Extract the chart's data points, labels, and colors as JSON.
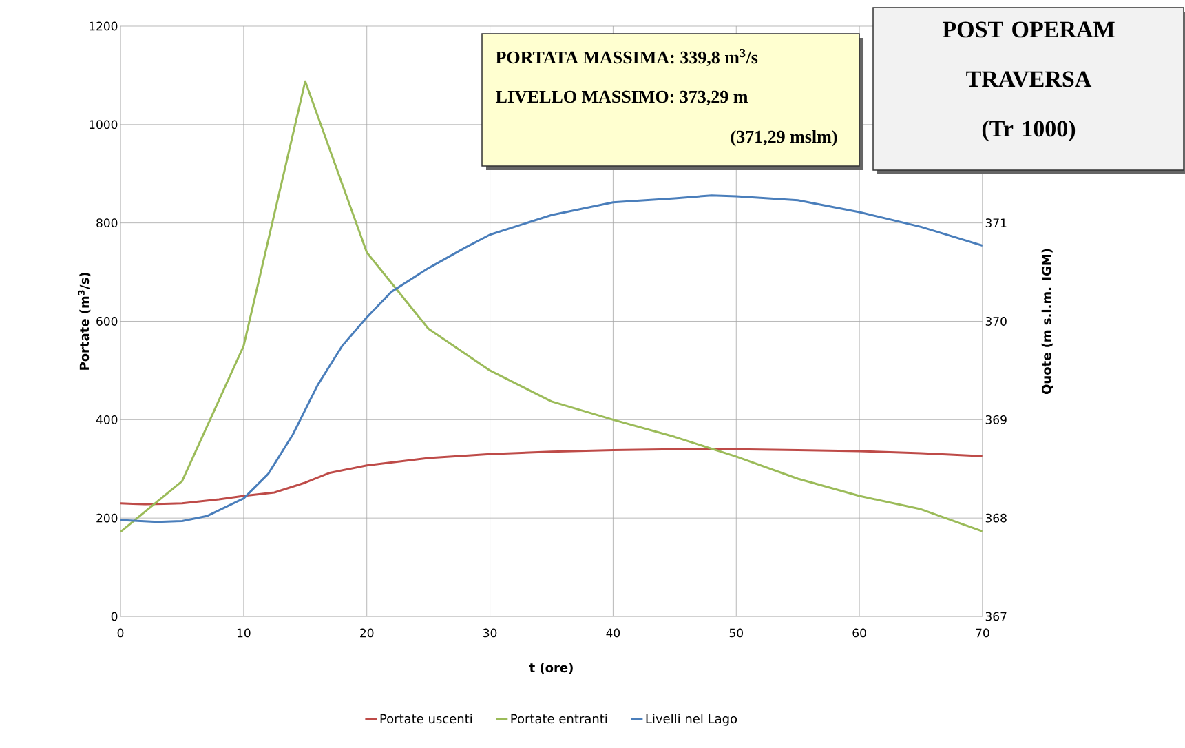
{
  "chart_data": {
    "type": "line",
    "title": "POST OPERAM TRAVERSA",
    "subtitle": "(Tr 1000)",
    "xlabel": "t (ore)",
    "ylabel": "Portate (m$^{3}$/s)",
    "y2label": "Quote (m s.l.m. IGM)",
    "annotations": [
      "PORTATA MASSIMA: 339,8 m$^{3}$/s",
      "LIVELLO MASSIMO: 373,29 m",
      "(371,29 mslm)"
    ],
    "xlim": [
      0,
      70
    ],
    "xticks": [
      0,
      10,
      20,
      30,
      40,
      50,
      60,
      70
    ],
    "ylim": [
      0,
      1200
    ],
    "yticks": [
      0,
      200,
      400,
      600,
      800,
      1000,
      1200
    ],
    "y2lim": [
      367,
      373
    ],
    "y2ticks": [
      367,
      368,
      369,
      370,
      371
    ],
    "grid": true,
    "legend": "bottom",
    "marker": "none",
    "line_style": "solid",
    "series": [
      {
        "name": "Portate uscenti",
        "color": "#be4b48",
        "x": [
          0,
          2,
          5,
          8,
          10,
          12.5,
          15,
          17,
          20,
          25,
          30,
          35,
          40,
          45,
          50,
          55,
          60,
          65,
          70
        ],
        "values": [
          230,
          228,
          230,
          238,
          245,
          252,
          272,
          292,
          307,
          322,
          330,
          335,
          338,
          340,
          340,
          338,
          336,
          332,
          326
        ]
      },
      {
        "name": "Portate entranti",
        "color": "#9bbb59",
        "x": [
          0,
          5,
          10,
          15,
          20,
          25,
          30,
          35,
          40,
          45,
          50,
          55,
          60,
          65,
          70
        ],
        "values": [
          172,
          275,
          550,
          1088,
          740,
          585,
          500,
          437,
          400,
          365,
          325,
          280,
          245,
          218,
          173
        ]
      },
      {
        "name": "Livelli nel Lago",
        "color": "#4a7ebb",
        "axis": "y2",
        "x": [
          0,
          3,
          5,
          7,
          10,
          12,
          14,
          16,
          18,
          20,
          22,
          25,
          28,
          30,
          35,
          40,
          45,
          48,
          50,
          55,
          60,
          65,
          70
        ],
        "values": [
          367.98,
          367.96,
          367.97,
          368.02,
          368.2,
          368.45,
          368.85,
          369.35,
          369.75,
          370.04,
          370.3,
          370.54,
          370.75,
          370.88,
          371.08,
          371.21,
          371.25,
          371.28,
          371.27,
          371.23,
          371.11,
          370.96,
          370.77
        ]
      }
    ]
  }
}
